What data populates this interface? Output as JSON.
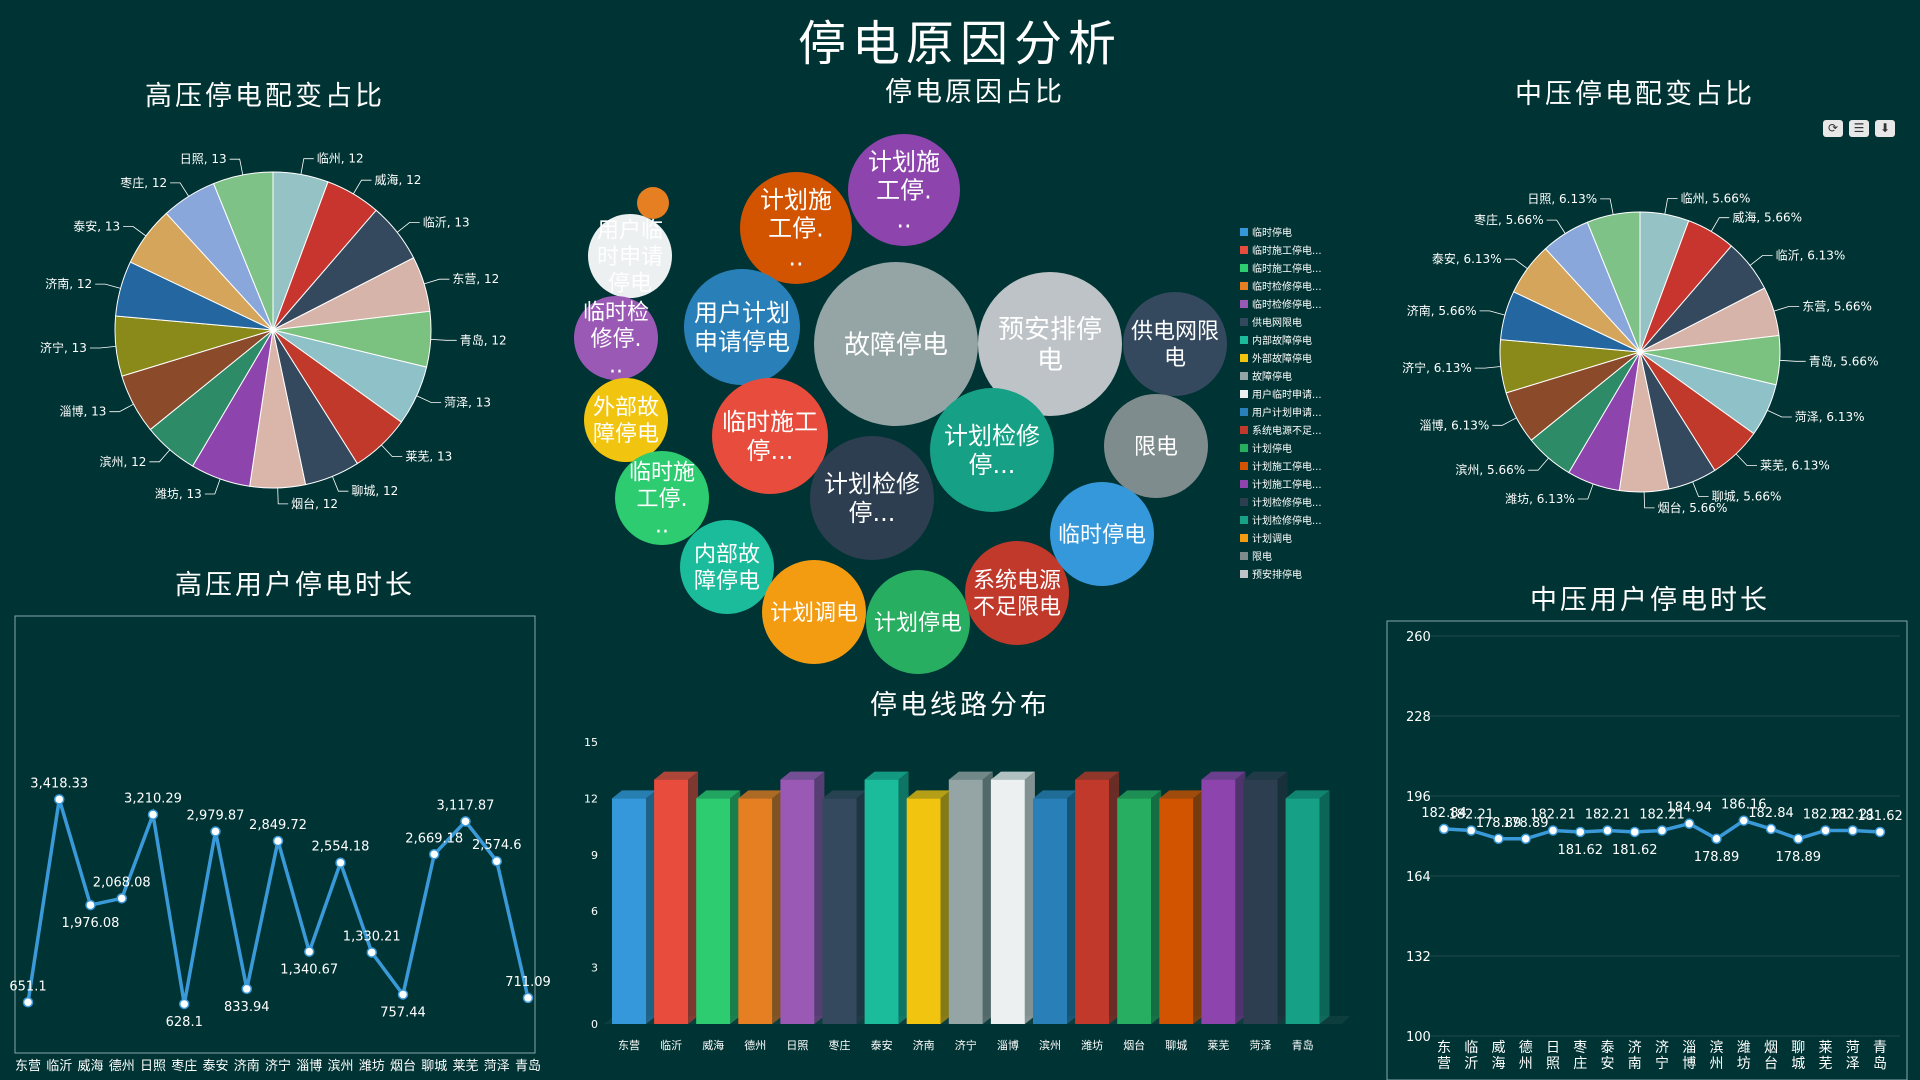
{
  "title": "停电原因分析",
  "panels": {
    "hv_transformer": "高压停电配变占比",
    "reasons": "停电原因占比",
    "mv_transformer": "中压停电配变占比",
    "hv_duration": "高压用户停电时长",
    "line_dist": "停电线路分布",
    "mv_duration": "中压用户停电时长"
  },
  "toolbox": {
    "refresh_icon": "refresh-icon",
    "list_icon": "data-view-icon",
    "download_icon": "download-icon"
  },
  "chart_data": [
    {
      "id": "hv_pie",
      "type": "pie",
      "title": "高压停电配变占比",
      "slices": [
        {
          "name": "临州",
          "value": 12,
          "label": "临州, 12",
          "color": "#95c3c5"
        },
        {
          "name": "威海",
          "value": 12,
          "label": "威海, 12",
          "color": "#c8352f"
        },
        {
          "name": "临沂",
          "value": 13,
          "label": "临沂, 13",
          "color": "#34495e"
        },
        {
          "name": "东营",
          "value": 12,
          "label": "东营, 12",
          "color": "#d7b4a9"
        },
        {
          "name": "青岛",
          "value": 12,
          "label": "青岛, 12",
          "color": "#7bc17f"
        },
        {
          "name": "菏泽",
          "value": 13,
          "label": "菏泽, 13",
          "color": "#8fc2c8"
        },
        {
          "name": "莱芜",
          "value": 13,
          "label": "莱芜, 13",
          "color": "#c0392b"
        },
        {
          "name": "聊城",
          "value": 12,
          "label": "聊城, 12",
          "color": "#34495e"
        },
        {
          "name": "烟台",
          "value": 12,
          "label": "烟台, 12",
          "color": "#d9b5aa"
        },
        {
          "name": "潍坊",
          "value": 13,
          "label": "潍坊, 13",
          "color": "#8e44ad"
        },
        {
          "name": "滨州",
          "value": 12,
          "label": "滨州, 12",
          "color": "#2e8b68"
        },
        {
          "name": "淄博",
          "value": 13,
          "label": "淄博, 13",
          "color": "#8b4b2a"
        },
        {
          "name": "济宁",
          "value": 13,
          "label": "济宁, 13",
          "color": "#8a8a1a"
        },
        {
          "name": "济南",
          "value": 12,
          "label": "济南, 12",
          "color": "#2467a0"
        },
        {
          "name": "泰安",
          "value": 13,
          "label": "泰安, 13",
          "color": "#d4a55a"
        },
        {
          "name": "枣庄",
          "value": 12,
          "label": "枣庄, 12",
          "color": "#8aa7dc"
        },
        {
          "name": "日照",
          "value": 13,
          "label": "日照, 13",
          "color": "#7ec288"
        }
      ]
    },
    {
      "id": "mv_pie",
      "type": "pie",
      "title": "中压停电配变占比",
      "slices": [
        {
          "name": "临州",
          "value": 5.66,
          "label": "临州, 5.66%",
          "color": "#95c3c5"
        },
        {
          "name": "威海",
          "value": 5.66,
          "label": "威海, 5.66%",
          "color": "#c8352f"
        },
        {
          "name": "临沂",
          "value": 6.13,
          "label": "临沂, 6.13%",
          "color": "#34495e"
        },
        {
          "name": "东营",
          "value": 5.66,
          "label": "东营, 5.66%",
          "color": "#d7b4a9"
        },
        {
          "name": "青岛",
          "value": 5.66,
          "label": "青岛, 5.66%",
          "color": "#7bc17f"
        },
        {
          "name": "菏泽",
          "value": 6.13,
          "label": "菏泽, 6.13%",
          "color": "#8fc2c8"
        },
        {
          "name": "莱芜",
          "value": 6.13,
          "label": "莱芜, 6.13%",
          "color": "#c0392b"
        },
        {
          "name": "聊城",
          "value": 5.66,
          "label": "聊城, 5.66%",
          "color": "#34495e"
        },
        {
          "name": "烟台",
          "value": 5.66,
          "label": "烟台, 5.66%",
          "color": "#d9b5aa"
        },
        {
          "name": "潍坊",
          "value": 6.13,
          "label": "潍坊, 6.13%",
          "color": "#8e44ad"
        },
        {
          "name": "滨州",
          "value": 5.66,
          "label": "滨州, 5.66%",
          "color": "#2e8b68"
        },
        {
          "name": "淄博",
          "value": 6.13,
          "label": "淄博, 6.13%",
          "color": "#8b4b2a"
        },
        {
          "name": "济宁",
          "value": 6.13,
          "label": "济宁, 6.13%",
          "color": "#8a8a1a"
        },
        {
          "name": "济南",
          "value": 5.66,
          "label": "济南, 5.66%",
          "color": "#2467a0"
        },
        {
          "name": "泰安",
          "value": 6.13,
          "label": "泰安, 6.13%",
          "color": "#d4a55a"
        },
        {
          "name": "枣庄",
          "value": 5.66,
          "label": "枣庄, 5.66%",
          "color": "#8aa7dc"
        },
        {
          "name": "日照",
          "value": 6.13,
          "label": "日照, 6.13%",
          "color": "#7ec288"
        }
      ]
    },
    {
      "id": "reasons_bubble",
      "type": "bubble",
      "title": "停电原因占比",
      "bubbles": [
        {
          "label": "故障停电",
          "size": 82,
          "color": "#95a5a6"
        },
        {
          "label": "预安排停电",
          "size": 72,
          "color": "#bdc3c7"
        },
        {
          "label": "供电网限电",
          "size": 52,
          "color": "#34495e"
        },
        {
          "label": "限电",
          "size": 52,
          "color": "#7f8c8d"
        },
        {
          "label": "计划施工停...",
          "size": 56,
          "color": "#d35400"
        },
        {
          "label": "计划施工停...",
          "size": 56,
          "color": "#8e44ad"
        },
        {
          "label": "用户临时申请停电",
          "size": 42,
          "color": "#ecf0f1"
        },
        {
          "label": "",
          "size": 16,
          "color": "#e67e22"
        },
        {
          "label": "用户计划申请停电",
          "size": 58,
          "color": "#2980b9"
        },
        {
          "label": "临时检修停...",
          "size": 42,
          "color": "#9b59b6"
        },
        {
          "label": "外部故障停电",
          "size": 42,
          "color": "#f1c40f"
        },
        {
          "label": "临时施工停...",
          "size": 47,
          "color": "#2ecc71"
        },
        {
          "label": "临时施工停...",
          "size": 58,
          "color": "#e74c3c"
        },
        {
          "label": "计划检修停...",
          "size": 62,
          "color": "#2c3e50"
        },
        {
          "label": "计划检修停...",
          "size": 62,
          "color": "#16a085"
        },
        {
          "label": "内部故障停电",
          "size": 47,
          "color": "#1abc9c"
        },
        {
          "label": "计划调电",
          "size": 52,
          "color": "#f39c12"
        },
        {
          "label": "计划停电",
          "size": 52,
          "color": "#27ae60"
        },
        {
          "label": "系统电源不足限电",
          "size": 52,
          "color": "#c0392b"
        },
        {
          "label": "临时停电",
          "size": 52,
          "color": "#3498db"
        }
      ],
      "legend": [
        {
          "name": "临时停电",
          "color": "#3498db"
        },
        {
          "name": "临时施工停电...",
          "color": "#e74c3c"
        },
        {
          "name": "临时施工停电...",
          "color": "#2ecc71"
        },
        {
          "name": "临时检修停电...",
          "color": "#e67e22"
        },
        {
          "name": "临时检修停电...",
          "color": "#9b59b6"
        },
        {
          "name": "供电网限电",
          "color": "#34495e"
        },
        {
          "name": "内部故障停电",
          "color": "#1abc9c"
        },
        {
          "name": "外部故障停电",
          "color": "#f1c40f"
        },
        {
          "name": "故障停电",
          "color": "#95a5a6"
        },
        {
          "name": "用户临时申请...",
          "color": "#ecf0f1"
        },
        {
          "name": "用户计划申请...",
          "color": "#2980b9"
        },
        {
          "name": "系统电源不足...",
          "color": "#c0392b"
        },
        {
          "name": "计划停电",
          "color": "#27ae60"
        },
        {
          "name": "计划施工停电...",
          "color": "#d35400"
        },
        {
          "name": "计划施工停电...",
          "color": "#8e44ad"
        },
        {
          "name": "计划检修停电...",
          "color": "#2c3e50"
        },
        {
          "name": "计划检修停电...",
          "color": "#16a085"
        },
        {
          "name": "计划调电",
          "color": "#f39c12"
        },
        {
          "name": "限电",
          "color": "#7f8c8d"
        },
        {
          "name": "预安排停电",
          "color": "#bdc3c7"
        }
      ]
    },
    {
      "id": "hv_line",
      "type": "line",
      "title": "高压用户停电时长",
      "categories": [
        "东营",
        "临沂",
        "威海",
        "德州",
        "日照",
        "枣庄",
        "泰安",
        "济南",
        "济宁",
        "淄博",
        "滨州",
        "潍坊",
        "烟台",
        "聊城",
        "莱芜",
        "菏泽",
        "青岛"
      ],
      "values": [
        651.1,
        3418.33,
        1976.08,
        2068.08,
        3210.29,
        628.1,
        2979.87,
        833.94,
        2849.72,
        1340.67,
        2554.18,
        1330.21,
        757.44,
        2669.18,
        3117.87,
        2574.6,
        711.09
      ],
      "labels": [
        "651.1",
        "3,418.33",
        "1,976.08",
        "2,068.08",
        "3,210.29",
        "628.1",
        "2,979.87",
        "833.94",
        "2,849.72",
        "1,340.67",
        "2,554.18",
        "1,330.21",
        "757.44",
        "2,669.18",
        "3,117.87",
        "2,574.6",
        "711.09"
      ],
      "ylim": [
        0,
        6000
      ],
      "color": "#3a9ad9"
    },
    {
      "id": "line_bar",
      "type": "bar",
      "title": "停电线路分布",
      "categories": [
        "东营",
        "临沂",
        "威海",
        "德州",
        "日照",
        "枣庄",
        "泰安",
        "济南",
        "济宁",
        "淄博",
        "滨州",
        "潍坊",
        "烟台",
        "聊城",
        "莱芜",
        "菏泽",
        "青岛"
      ],
      "values": [
        12,
        13,
        12,
        12,
        13,
        12,
        13,
        12,
        13,
        13,
        12,
        13,
        12,
        12,
        13,
        13,
        12
      ],
      "colors": [
        "#3498db",
        "#e74c3c",
        "#2ecc71",
        "#e67e22",
        "#9b59b6",
        "#34495e",
        "#1abc9c",
        "#f1c40f",
        "#95a5a6",
        "#ecf0f1",
        "#2980b9",
        "#c0392b",
        "#27ae60",
        "#d35400",
        "#8e44ad",
        "#2c3e50",
        "#16a085"
      ],
      "yticks": [
        "0",
        "3",
        "6",
        "9",
        "12",
        "15"
      ],
      "ylim": [
        0,
        15
      ]
    },
    {
      "id": "mv_line",
      "type": "line",
      "title": "中压用户停电时长",
      "categories": [
        "东营",
        "临沂",
        "威海",
        "德州",
        "日照",
        "枣庄",
        "泰安",
        "济南",
        "济宁",
        "淄博",
        "滨州",
        "潍坊",
        "烟台",
        "聊城",
        "莱芜",
        "菏泽",
        "青岛"
      ],
      "values": [
        182.84,
        182.21,
        178.89,
        178.89,
        182.21,
        181.62,
        182.21,
        181.62,
        182.21,
        184.94,
        178.89,
        186.16,
        182.84,
        178.89,
        182.21,
        182.21,
        181.62
      ],
      "labels": [
        "182.84",
        "182.21",
        "178.89",
        "178.89",
        "182.21",
        "181.62",
        "182.21",
        "181.62",
        "182.21",
        "184.94",
        "178.89",
        "186.16",
        "182.84",
        "178.89",
        "182.21",
        "182.21",
        "181.62"
      ],
      "yticks": [
        "100",
        "132",
        "164",
        "196",
        "228",
        "260"
      ],
      "ylim": [
        100,
        260
      ],
      "color": "#3a9ad9"
    }
  ]
}
